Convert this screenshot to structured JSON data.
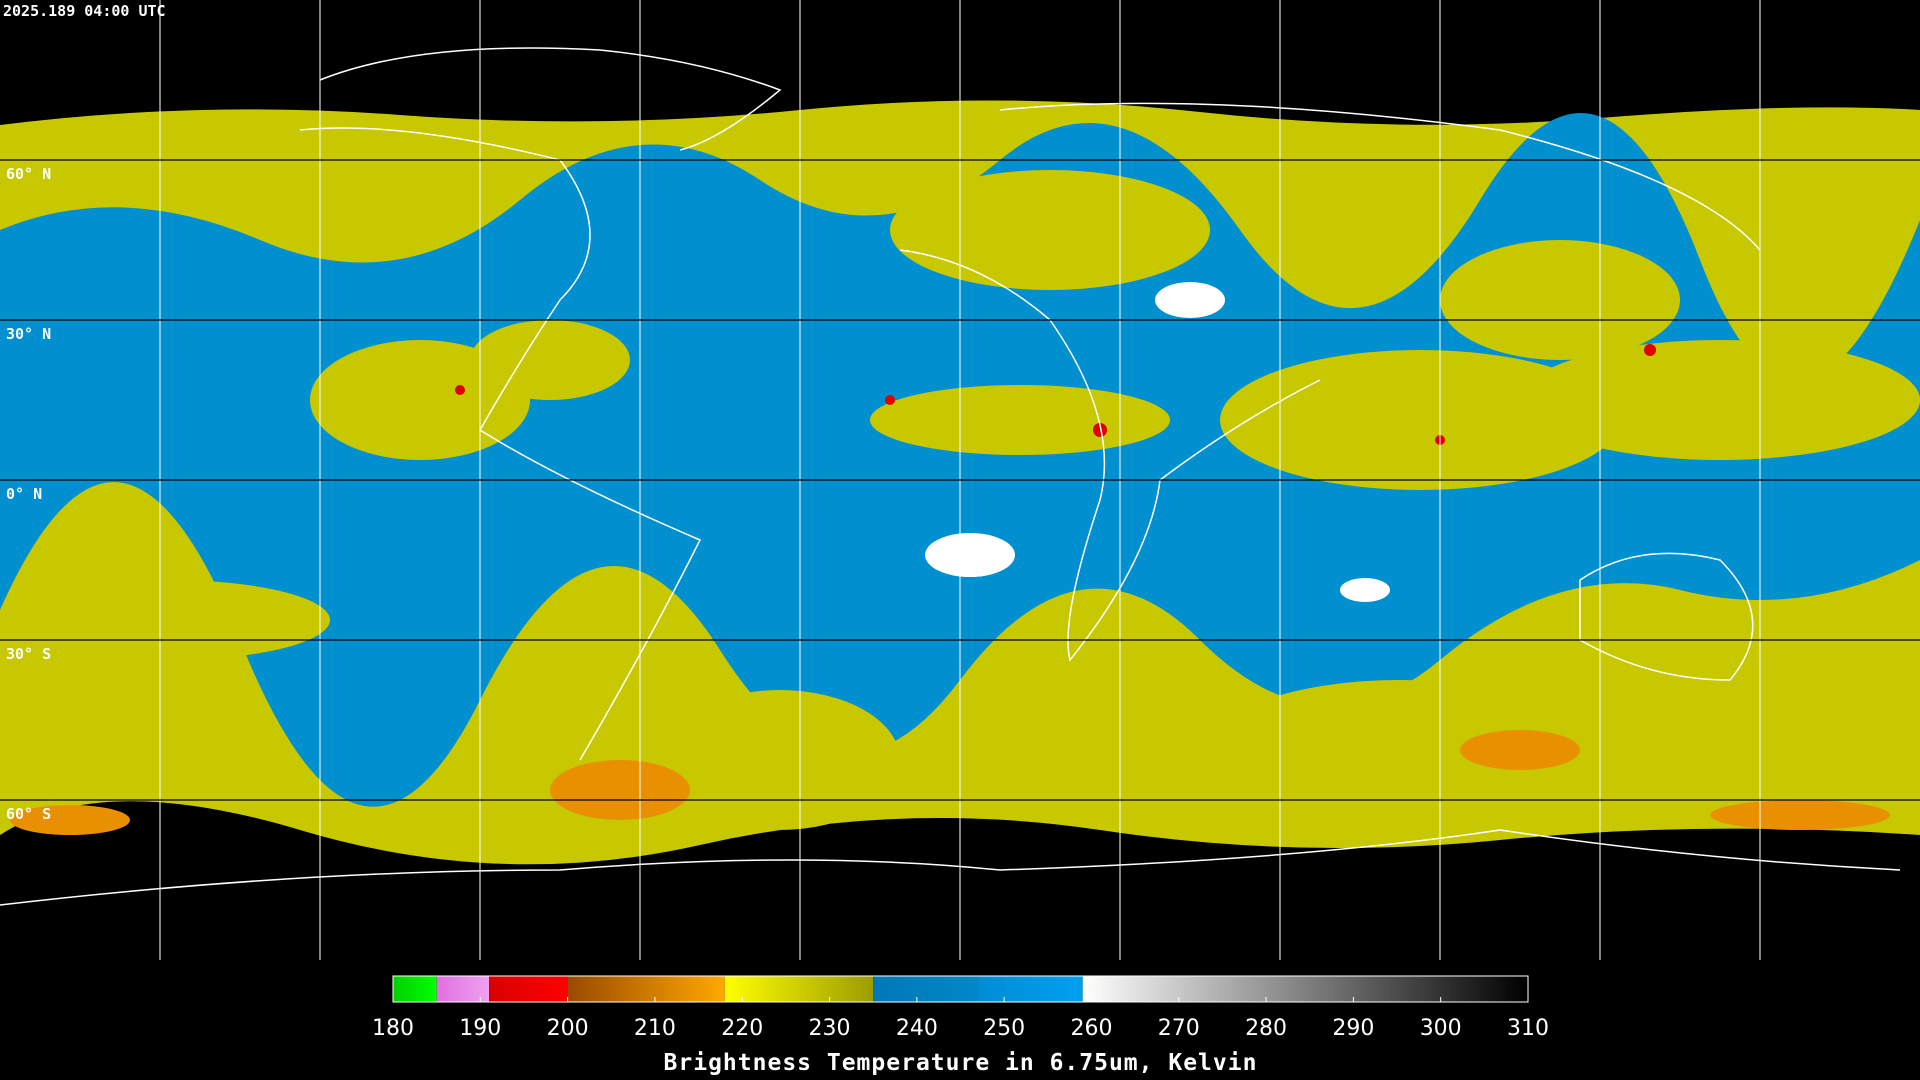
{
  "timestamp": "2025.189 04:00 UTC",
  "grid": {
    "lat_labels": [
      "60° N",
      "30° N",
      "0° N",
      "30° S",
      "60° S"
    ]
  },
  "colorbar": {
    "title": "Brightness Temperature in 6.75um, Kelvin",
    "lim": [
      180,
      310
    ],
    "ticks": [
      180,
      190,
      200,
      210,
      220,
      230,
      240,
      250,
      260,
      270,
      280,
      290,
      300,
      310
    ],
    "segments": [
      {
        "from": 180,
        "to": 185,
        "colors": [
          "#00d000",
          "#00ff00"
        ]
      },
      {
        "from": 185,
        "to": 191,
        "colors": [
          "#e070e0",
          "#f0a0f0"
        ]
      },
      {
        "from": 191,
        "to": 200,
        "colors": [
          "#d80000",
          "#ff0000"
        ]
      },
      {
        "from": 200,
        "to": 218,
        "colors": [
          "#9a4a00",
          "#ffa800"
        ]
      },
      {
        "from": 218,
        "to": 235,
        "colors": [
          "#ffff00",
          "#9c9c00"
        ]
      },
      {
        "from": 235,
        "to": 247,
        "colors": [
          "#0078b8",
          "#0088c8"
        ]
      },
      {
        "from": 247,
        "to": 259,
        "colors": [
          "#008cd4",
          "#00a0f0"
        ]
      },
      {
        "from": 259,
        "to": 310,
        "colors": [
          "#ffffff",
          "#000000"
        ]
      }
    ]
  }
}
